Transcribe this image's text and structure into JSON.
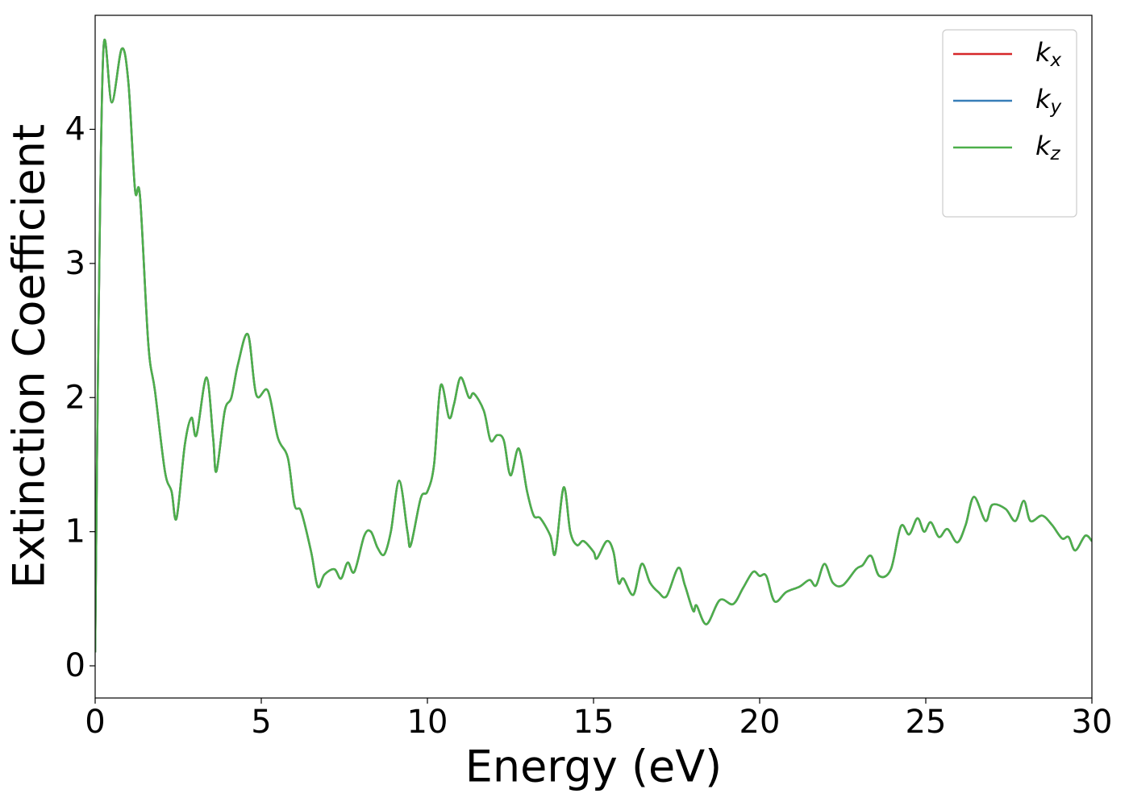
{
  "chart_data": {
    "type": "line",
    "xlabel": "Energy (eV)",
    "ylabel": "Extinction Coefficient",
    "xlim": [
      0,
      30
    ],
    "ylim": [
      -0.24,
      4.85
    ],
    "xticks": [
      0,
      5,
      10,
      15,
      20,
      25,
      30
    ],
    "yticks": [
      0,
      1,
      2,
      3,
      4
    ],
    "grid": false,
    "legend": "upper right",
    "x": [
      0,
      0.1,
      0.25,
      0.5,
      0.8,
      1.0,
      1.2,
      1.35,
      1.6,
      1.8,
      2.1,
      2.3,
      2.45,
      2.7,
      2.9,
      3.05,
      3.35,
      3.55,
      3.65,
      3.9,
      4.1,
      4.3,
      4.6,
      4.85,
      5.2,
      5.5,
      5.8,
      6.0,
      6.2,
      6.5,
      6.7,
      6.9,
      7.2,
      7.4,
      7.6,
      7.8,
      8.1,
      8.3,
      8.5,
      8.7,
      8.9,
      9.15,
      9.4,
      9.5,
      9.8,
      10.0,
      10.2,
      10.4,
      10.65,
      10.8,
      11.0,
      11.25,
      11.4,
      11.7,
      11.9,
      12.1,
      12.3,
      12.5,
      12.75,
      13.0,
      13.2,
      13.4,
      13.7,
      13.85,
      14.1,
      14.3,
      14.5,
      14.7,
      15.0,
      15.1,
      15.4,
      15.6,
      15.75,
      15.9,
      16.2,
      16.45,
      16.7,
      16.95,
      17.2,
      17.55,
      17.75,
      18.0,
      18.1,
      18.4,
      18.8,
      19.2,
      19.5,
      19.8,
      20.0,
      20.2,
      20.45,
      20.8,
      21.2,
      21.5,
      21.7,
      21.95,
      22.2,
      22.5,
      22.9,
      23.1,
      23.35,
      23.6,
      23.95,
      24.25,
      24.5,
      24.75,
      24.95,
      25.15,
      25.4,
      25.65,
      25.95,
      26.2,
      26.45,
      26.8,
      27.0,
      27.4,
      27.7,
      27.95,
      28.15,
      28.5,
      28.8,
      29.1,
      29.3,
      29.5,
      29.8,
      30.0
    ],
    "series": [
      {
        "name": "kx",
        "color": "#d62728",
        "values": [
          0.1,
          2.5,
          4.6,
          4.2,
          4.6,
          4.35,
          3.55,
          3.5,
          2.4,
          2.05,
          1.45,
          1.3,
          1.1,
          1.65,
          1.85,
          1.72,
          2.15,
          1.7,
          1.45,
          1.9,
          2.0,
          2.25,
          2.47,
          2.02,
          2.05,
          1.7,
          1.55,
          1.2,
          1.15,
          0.85,
          0.59,
          0.68,
          0.72,
          0.65,
          0.77,
          0.7,
          0.97,
          1.0,
          0.88,
          0.83,
          1.0,
          1.38,
          1.0,
          0.9,
          1.25,
          1.3,
          1.5,
          2.09,
          1.85,
          1.95,
          2.15,
          2.0,
          2.03,
          1.9,
          1.68,
          1.72,
          1.68,
          1.42,
          1.62,
          1.3,
          1.12,
          1.1,
          0.97,
          0.84,
          1.33,
          1.0,
          0.9,
          0.93,
          0.85,
          0.8,
          0.93,
          0.85,
          0.62,
          0.65,
          0.53,
          0.76,
          0.62,
          0.55,
          0.52,
          0.73,
          0.6,
          0.41,
          0.45,
          0.31,
          0.49,
          0.46,
          0.58,
          0.7,
          0.67,
          0.67,
          0.48,
          0.55,
          0.59,
          0.64,
          0.6,
          0.76,
          0.62,
          0.6,
          0.72,
          0.75,
          0.82,
          0.67,
          0.72,
          1.04,
          0.98,
          1.1,
          1.0,
          1.07,
          0.96,
          1.02,
          0.92,
          1.05,
          1.26,
          1.08,
          1.2,
          1.17,
          1.08,
          1.23,
          1.08,
          1.12,
          1.05,
          0.95,
          0.96,
          0.86,
          0.97,
          0.93
        ]
      },
      {
        "name": "ky",
        "color": "#377eb8",
        "values": [
          0.1,
          2.5,
          4.6,
          4.2,
          4.6,
          4.35,
          3.55,
          3.5,
          2.4,
          2.05,
          1.45,
          1.3,
          1.1,
          1.65,
          1.85,
          1.72,
          2.15,
          1.7,
          1.45,
          1.9,
          2.0,
          2.25,
          2.47,
          2.02,
          2.05,
          1.7,
          1.55,
          1.2,
          1.15,
          0.85,
          0.59,
          0.68,
          0.72,
          0.65,
          0.77,
          0.7,
          0.97,
          1.0,
          0.88,
          0.83,
          1.0,
          1.38,
          1.0,
          0.9,
          1.25,
          1.3,
          1.5,
          2.09,
          1.85,
          1.95,
          2.15,
          2.0,
          2.03,
          1.9,
          1.68,
          1.72,
          1.68,
          1.42,
          1.62,
          1.3,
          1.12,
          1.1,
          0.97,
          0.84,
          1.33,
          1.0,
          0.9,
          0.93,
          0.85,
          0.8,
          0.93,
          0.85,
          0.62,
          0.65,
          0.53,
          0.76,
          0.62,
          0.55,
          0.52,
          0.73,
          0.6,
          0.41,
          0.45,
          0.31,
          0.49,
          0.46,
          0.58,
          0.7,
          0.67,
          0.67,
          0.48,
          0.55,
          0.59,
          0.64,
          0.6,
          0.76,
          0.62,
          0.6,
          0.72,
          0.75,
          0.82,
          0.67,
          0.72,
          1.04,
          0.98,
          1.1,
          1.0,
          1.07,
          0.96,
          1.02,
          0.92,
          1.05,
          1.26,
          1.08,
          1.2,
          1.17,
          1.08,
          1.23,
          1.08,
          1.12,
          1.05,
          0.95,
          0.96,
          0.86,
          0.97,
          0.93
        ]
      },
      {
        "name": "kz",
        "color": "#4daf4a",
        "values": [
          0.1,
          2.5,
          4.6,
          4.2,
          4.6,
          4.35,
          3.55,
          3.5,
          2.4,
          2.05,
          1.45,
          1.3,
          1.1,
          1.65,
          1.85,
          1.72,
          2.15,
          1.7,
          1.45,
          1.9,
          2.0,
          2.25,
          2.47,
          2.02,
          2.05,
          1.7,
          1.55,
          1.2,
          1.15,
          0.85,
          0.59,
          0.68,
          0.72,
          0.65,
          0.77,
          0.7,
          0.97,
          1.0,
          0.88,
          0.83,
          1.0,
          1.38,
          1.0,
          0.9,
          1.25,
          1.3,
          1.5,
          2.09,
          1.85,
          1.95,
          2.15,
          2.0,
          2.03,
          1.9,
          1.68,
          1.72,
          1.68,
          1.42,
          1.62,
          1.3,
          1.12,
          1.1,
          0.97,
          0.84,
          1.33,
          1.0,
          0.9,
          0.93,
          0.85,
          0.8,
          0.93,
          0.85,
          0.62,
          0.65,
          0.53,
          0.76,
          0.62,
          0.55,
          0.52,
          0.73,
          0.6,
          0.41,
          0.45,
          0.31,
          0.49,
          0.46,
          0.58,
          0.7,
          0.67,
          0.67,
          0.48,
          0.55,
          0.59,
          0.64,
          0.6,
          0.76,
          0.62,
          0.6,
          0.72,
          0.75,
          0.82,
          0.67,
          0.72,
          1.04,
          0.98,
          1.1,
          1.0,
          1.07,
          0.96,
          1.02,
          0.92,
          1.05,
          1.26,
          1.08,
          1.2,
          1.17,
          1.08,
          1.23,
          1.08,
          1.12,
          1.05,
          0.95,
          0.96,
          0.86,
          0.97,
          0.93
        ]
      }
    ]
  }
}
